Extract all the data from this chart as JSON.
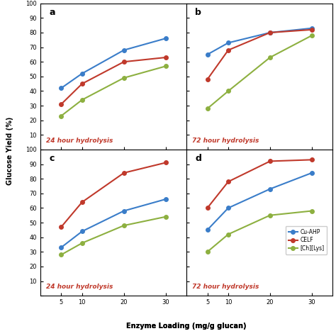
{
  "x": [
    5,
    10,
    20,
    30
  ],
  "panels": {
    "a": {
      "title": "24 hour hydrolysis",
      "cu_ahp": [
        42,
        52,
        68,
        76
      ],
      "celf": [
        31,
        45,
        60,
        63
      ],
      "ch_lys": [
        23,
        34,
        49,
        57
      ]
    },
    "b": {
      "title": "72 hour hydrolysis",
      "cu_ahp": [
        65,
        73,
        80,
        83
      ],
      "celf": [
        48,
        68,
        80,
        82
      ],
      "ch_lys": [
        28,
        40,
        63,
        78
      ]
    },
    "c": {
      "title": "24 hour hydrolysis",
      "cu_ahp": [
        33,
        44,
        58,
        66
      ],
      "celf": [
        47,
        64,
        84,
        91
      ],
      "ch_lys": [
        28,
        36,
        48,
        54
      ]
    },
    "d": {
      "title": "72 hour hydrolysis",
      "cu_ahp": [
        45,
        60,
        73,
        84
      ],
      "celf": [
        60,
        78,
        92,
        93
      ],
      "ch_lys": [
        30,
        42,
        55,
        58
      ]
    }
  },
  "colors": {
    "cu_ahp": "#3a7dc9",
    "celf": "#c0392b",
    "ch_lys": "#8db040"
  },
  "legend_labels": [
    "Cu-AHP",
    "CELF",
    "[Ch][Lys]"
  ],
  "xlabel": "Enzyme Loading (mg/g glucan)",
  "ylim": [
    0,
    100
  ],
  "yticks": [
    0,
    10,
    20,
    30,
    40,
    50,
    60,
    70,
    80,
    90,
    100
  ],
  "xticks": [
    5,
    10,
    20,
    30
  ],
  "panel_labels": [
    "a",
    "b",
    "c",
    "d"
  ],
  "title_color": "#c0392b",
  "title_fontsize": 6.5,
  "marker": "o",
  "markersize": 4,
  "linewidth": 1.5
}
